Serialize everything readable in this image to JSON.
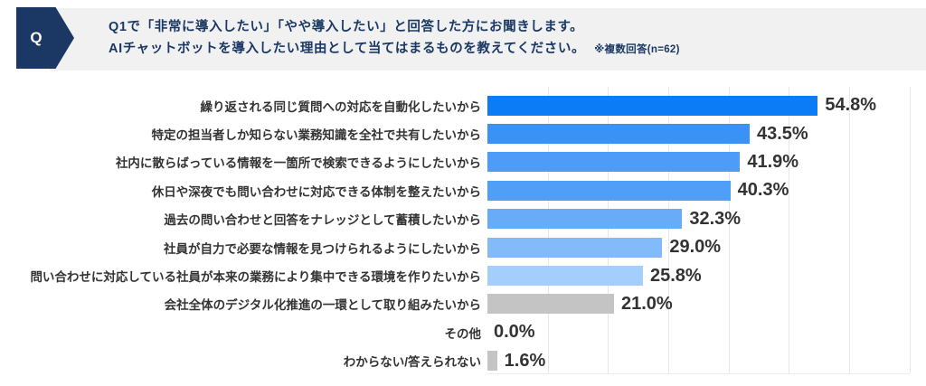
{
  "header": {
    "badge": "Q",
    "line1": "Q1で「非常に導入したい」「やや導入したい」と回答した方にお聞きします。",
    "line2": "AIチャットボットを導入したい理由として当てはまるものを教えてください。",
    "note": "※複数回答(n=62)"
  },
  "colors": {
    "navy": "#1a3863",
    "header_bg": "#f1f1f2",
    "label_text": "#333333",
    "value_text": "#333333",
    "gridline": "#e7e7e7",
    "gray_bar": "#c4c4c4",
    "bar_blue_max": "#0b7bf6"
  },
  "chart_data": {
    "type": "bar",
    "orientation": "horizontal",
    "title": "",
    "xlabel": "",
    "ylabel": "",
    "xlim": [
      0,
      70
    ],
    "gridline_interval": 10,
    "grid": true,
    "legend": false,
    "categories": [
      "繰り返される同じ質問への対応を自動化したいから",
      "特定の担当者しか知らない業務知識を全社で共有したいから",
      "社内に散らばっている情報を一箇所で検索できるようにしたいから",
      "休日や深夜でも問い合わせに対応できる体制を整えたいから",
      "過去の問い合わせと回答をナレッジとして蓄積したいから",
      "社員が自力で必要な情報を見つけられるようにしたいから",
      "問い合わせに対応している社員が本来の業務により集中できる環境を作りたいから",
      "会社全体のデジタル化推進の一環として取り組みたいから",
      "その他",
      "わからない/答えられない"
    ],
    "values": [
      54.8,
      43.5,
      41.9,
      40.3,
      32.3,
      29.0,
      25.8,
      21.0,
      0.0,
      1.6
    ],
    "value_labels": [
      "54.8%",
      "43.5%",
      "41.9%",
      "40.3%",
      "32.3%",
      "29.0%",
      "25.8%",
      "21.0%",
      "0.0%",
      "1.6%"
    ],
    "bar_colors": [
      "#0b7bf6",
      "#3a92f7",
      "#4c9cf8",
      "#4f9ff9",
      "#68abf8",
      "#83bafa",
      "#a4cefc",
      "#c4c4c4",
      "#c4c4c4",
      "#c4c4c4"
    ]
  }
}
